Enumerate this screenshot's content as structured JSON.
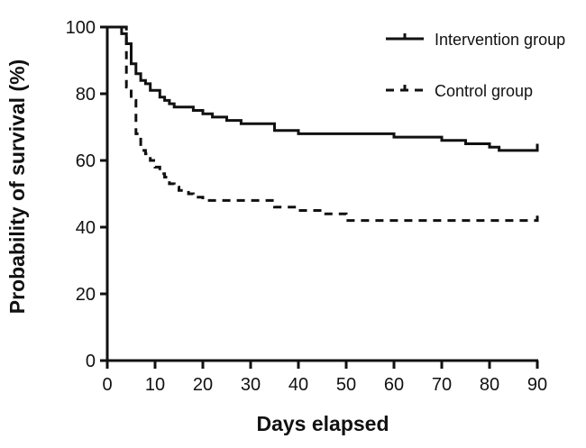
{
  "chart_data": {
    "type": "line",
    "subtype": "kaplan-meier step",
    "title": "",
    "xlabel": "Days elapsed",
    "ylabel": "Probability of survival (%)",
    "xlim": [
      0,
      90
    ],
    "ylim": [
      0,
      100
    ],
    "xticks": [
      0,
      10,
      20,
      30,
      40,
      50,
      60,
      70,
      80,
      90
    ],
    "yticks": [
      0,
      20,
      40,
      60,
      80,
      100
    ],
    "grid": false,
    "legend_position": "top-right",
    "series": [
      {
        "name": "Intervention group",
        "style": "solid",
        "x": [
          0,
          3,
          4,
          5,
          6,
          7,
          8,
          9,
          11,
          12,
          13,
          14,
          18,
          20,
          22,
          25,
          28,
          35,
          40,
          50,
          60,
          70,
          75,
          80,
          82,
          90
        ],
        "y": [
          100,
          98,
          95,
          89,
          86,
          84,
          83,
          81,
          79,
          78,
          77,
          76,
          75,
          74,
          73,
          72,
          71,
          69,
          68,
          68,
          67,
          66,
          65,
          64,
          63,
          65
        ]
      },
      {
        "name": "Control group",
        "style": "dashed",
        "x": [
          0,
          4,
          5,
          6,
          7,
          8,
          9,
          10,
          11,
          12,
          13,
          14,
          15,
          17,
          18,
          20,
          22,
          35,
          40,
          45,
          50,
          60,
          70,
          80,
          90
        ],
        "y": [
          100,
          82,
          78,
          68,
          63,
          62,
          60,
          58,
          56,
          55,
          53,
          52,
          51,
          50,
          49,
          48,
          48,
          46,
          45,
          44,
          42,
          42,
          42,
          42,
          44
        ]
      }
    ]
  }
}
